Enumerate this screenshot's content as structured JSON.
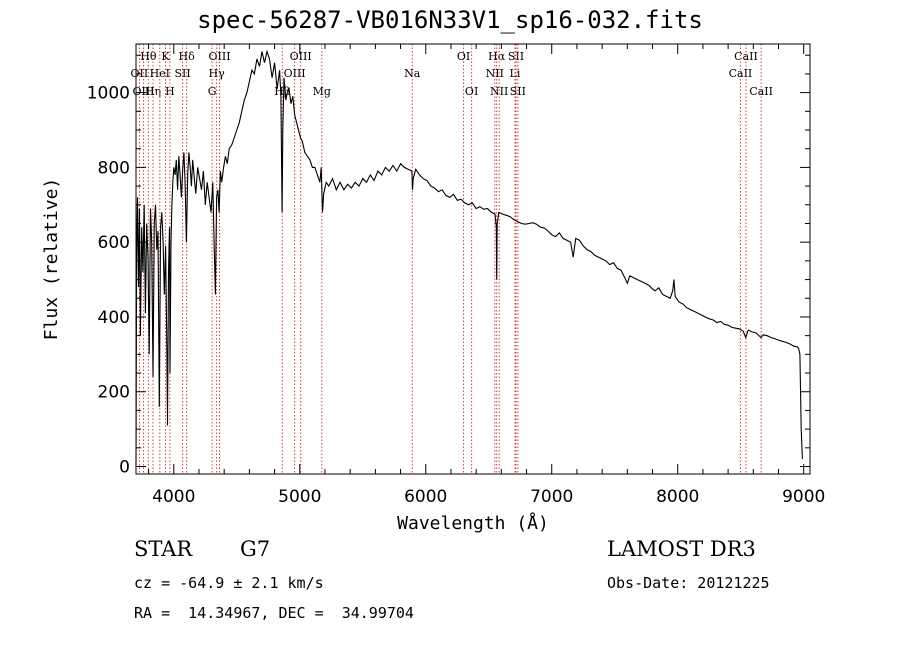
{
  "chart_data": {
    "type": "line",
    "title": "spec-56287-VB016N33V1_sp16-032.fits",
    "xlabel": "Wavelength (Å)",
    "ylabel": "Flux (relative)",
    "xlim": [
      3700,
      9050
    ],
    "ylim": [
      -20,
      1130
    ],
    "xticks": [
      4000,
      5000,
      6000,
      7000,
      8000,
      9000
    ],
    "yticks": [
      0,
      200,
      400,
      600,
      800,
      1000
    ],
    "series": [
      {
        "name": "flux",
        "points": [
          [
            3700,
            0
          ],
          [
            3705,
            560
          ],
          [
            3712,
            720
          ],
          [
            3720,
            480
          ],
          [
            3728,
            690
          ],
          [
            3735,
            350
          ],
          [
            3745,
            640
          ],
          [
            3755,
            520
          ],
          [
            3765,
            700
          ],
          [
            3775,
            410
          ],
          [
            3785,
            650
          ],
          [
            3795,
            560
          ],
          [
            3805,
            300
          ],
          [
            3815,
            690
          ],
          [
            3825,
            600
          ],
          [
            3835,
            240
          ],
          [
            3845,
            650
          ],
          [
            3855,
            700
          ],
          [
            3865,
            580
          ],
          [
            3875,
            630
          ],
          [
            3885,
            160
          ],
          [
            3895,
            640
          ],
          [
            3905,
            680
          ],
          [
            3915,
            600
          ],
          [
            3925,
            460
          ],
          [
            3935,
            590
          ],
          [
            3945,
            300
          ],
          [
            3950,
            110
          ],
          [
            3958,
            520
          ],
          [
            3966,
            640
          ],
          [
            3970,
            250
          ],
          [
            3978,
            600
          ],
          [
            3985,
            700
          ],
          [
            3992,
            760
          ],
          [
            4000,
            800
          ],
          [
            4010,
            780
          ],
          [
            4020,
            820
          ],
          [
            4030,
            740
          ],
          [
            4040,
            830
          ],
          [
            4050,
            780
          ],
          [
            4060,
            720
          ],
          [
            4070,
            790
          ],
          [
            4080,
            840
          ],
          [
            4090,
            760
          ],
          [
            4100,
            600
          ],
          [
            4110,
            780
          ],
          [
            4120,
            840
          ],
          [
            4130,
            800
          ],
          [
            4140,
            750
          ],
          [
            4150,
            820
          ],
          [
            4160,
            780
          ],
          [
            4175,
            730
          ],
          [
            4190,
            800
          ],
          [
            4205,
            770
          ],
          [
            4220,
            740
          ],
          [
            4235,
            790
          ],
          [
            4250,
            700
          ],
          [
            4265,
            760
          ],
          [
            4280,
            720
          ],
          [
            4295,
            680
          ],
          [
            4310,
            760
          ],
          [
            4320,
            600
          ],
          [
            4330,
            460
          ],
          [
            4340,
            720
          ],
          [
            4350,
            740
          ],
          [
            4360,
            680
          ],
          [
            4370,
            790
          ],
          [
            4380,
            760
          ],
          [
            4395,
            800
          ],
          [
            4410,
            830
          ],
          [
            4425,
            810
          ],
          [
            4440,
            850
          ],
          [
            4460,
            860
          ],
          [
            4480,
            880
          ],
          [
            4500,
            900
          ],
          [
            4520,
            920
          ],
          [
            4540,
            950
          ],
          [
            4560,
            980
          ],
          [
            4580,
            1000
          ],
          [
            4600,
            1030
          ],
          [
            4620,
            1060
          ],
          [
            4640,
            1050
          ],
          [
            4660,
            1090
          ],
          [
            4680,
            1070
          ],
          [
            4700,
            1110
          ],
          [
            4720,
            1080
          ],
          [
            4740,
            1110
          ],
          [
            4760,
            1090
          ],
          [
            4780,
            1040
          ],
          [
            4800,
            1080
          ],
          [
            4820,
            1010
          ],
          [
            4840,
            1060
          ],
          [
            4850,
            990
          ],
          [
            4860,
            680
          ],
          [
            4865,
            900
          ],
          [
            4875,
            1040
          ],
          [
            4890,
            980
          ],
          [
            4900,
            1000
          ],
          [
            4915,
            1010
          ],
          [
            4930,
            970
          ],
          [
            4945,
            990
          ],
          [
            4960,
            940
          ],
          [
            4975,
            920
          ],
          [
            4990,
            900
          ],
          [
            5005,
            880
          ],
          [
            5020,
            870
          ],
          [
            5040,
            840
          ],
          [
            5060,
            830
          ],
          [
            5080,
            820
          ],
          [
            5100,
            800
          ],
          [
            5120,
            800
          ],
          [
            5140,
            780
          ],
          [
            5160,
            760
          ],
          [
            5170,
            800
          ],
          [
            5180,
            680
          ],
          [
            5190,
            730
          ],
          [
            5210,
            760
          ],
          [
            5230,
            750
          ],
          [
            5260,
            770
          ],
          [
            5290,
            740
          ],
          [
            5320,
            760
          ],
          [
            5350,
            740
          ],
          [
            5380,
            755
          ],
          [
            5410,
            745
          ],
          [
            5440,
            760
          ],
          [
            5470,
            750
          ],
          [
            5500,
            770
          ],
          [
            5530,
            760
          ],
          [
            5560,
            780
          ],
          [
            5590,
            765
          ],
          [
            5620,
            790
          ],
          [
            5650,
            780
          ],
          [
            5680,
            800
          ],
          [
            5710,
            790
          ],
          [
            5740,
            805
          ],
          [
            5770,
            790
          ],
          [
            5800,
            810
          ],
          [
            5830,
            800
          ],
          [
            5860,
            795
          ],
          [
            5890,
            790
          ],
          [
            5895,
            740
          ],
          [
            5900,
            770
          ],
          [
            5920,
            795
          ],
          [
            5950,
            780
          ],
          [
            5980,
            770
          ],
          [
            6010,
            765
          ],
          [
            6040,
            750
          ],
          [
            6070,
            745
          ],
          [
            6100,
            735
          ],
          [
            6130,
            740
          ],
          [
            6160,
            725
          ],
          [
            6190,
            720
          ],
          [
            6220,
            728
          ],
          [
            6250,
            712
          ],
          [
            6280,
            715
          ],
          [
            6310,
            705
          ],
          [
            6340,
            700
          ],
          [
            6370,
            705
          ],
          [
            6400,
            690
          ],
          [
            6430,
            695
          ],
          [
            6460,
            688
          ],
          [
            6490,
            690
          ],
          [
            6520,
            680
          ],
          [
            6550,
            675
          ],
          [
            6560,
            640
          ],
          [
            6563,
            500
          ],
          [
            6567,
            650
          ],
          [
            6580,
            680
          ],
          [
            6610,
            675
          ],
          [
            6640,
            672
          ],
          [
            6670,
            668
          ],
          [
            6700,
            660
          ],
          [
            6730,
            655
          ],
          [
            6760,
            650
          ],
          [
            6790,
            648
          ],
          [
            6820,
            650
          ],
          [
            6850,
            652
          ],
          [
            6880,
            648
          ],
          [
            6910,
            640
          ],
          [
            6940,
            638
          ],
          [
            6970,
            630
          ],
          [
            7000,
            620
          ],
          [
            7030,
            615
          ],
          [
            7060,
            625
          ],
          [
            7090,
            610
          ],
          [
            7120,
            605
          ],
          [
            7150,
            600
          ],
          [
            7170,
            560
          ],
          [
            7190,
            610
          ],
          [
            7220,
            605
          ],
          [
            7250,
            590
          ],
          [
            7280,
            580
          ],
          [
            7310,
            575
          ],
          [
            7340,
            565
          ],
          [
            7370,
            560
          ],
          [
            7400,
            555
          ],
          [
            7430,
            550
          ],
          [
            7460,
            540
          ],
          [
            7490,
            545
          ],
          [
            7520,
            530
          ],
          [
            7550,
            525
          ],
          [
            7580,
            505
          ],
          [
            7600,
            490
          ],
          [
            7620,
            510
          ],
          [
            7650,
            505
          ],
          [
            7680,
            500
          ],
          [
            7710,
            495
          ],
          [
            7740,
            490
          ],
          [
            7770,
            485
          ],
          [
            7800,
            475
          ],
          [
            7820,
            470
          ],
          [
            7850,
            478
          ],
          [
            7880,
            460
          ],
          [
            7910,
            455
          ],
          [
            7940,
            450
          ],
          [
            7960,
            470
          ],
          [
            7970,
            500
          ],
          [
            7980,
            455
          ],
          [
            8010,
            440
          ],
          [
            8040,
            435
          ],
          [
            8070,
            425
          ],
          [
            8100,
            420
          ],
          [
            8130,
            415
          ],
          [
            8160,
            410
          ],
          [
            8190,
            405
          ],
          [
            8220,
            400
          ],
          [
            8250,
            395
          ],
          [
            8280,
            392
          ],
          [
            8310,
            385
          ],
          [
            8340,
            388
          ],
          [
            8370,
            380
          ],
          [
            8400,
            378
          ],
          [
            8430,
            372
          ],
          [
            8460,
            370
          ],
          [
            8490,
            368
          ],
          [
            8520,
            362
          ],
          [
            8540,
            345
          ],
          [
            8560,
            365
          ],
          [
            8590,
            360
          ],
          [
            8620,
            358
          ],
          [
            8660,
            345
          ],
          [
            8680,
            352
          ],
          [
            8710,
            350
          ],
          [
            8740,
            345
          ],
          [
            8770,
            342
          ],
          [
            8800,
            338
          ],
          [
            8830,
            335
          ],
          [
            8860,
            332
          ],
          [
            8890,
            328
          ],
          [
            8920,
            322
          ],
          [
            8950,
            320
          ],
          [
            8960,
            315
          ],
          [
            8970,
            300
          ],
          [
            8980,
            100
          ],
          [
            8990,
            20
          ]
        ]
      }
    ],
    "spectral_lines": [
      {
        "name": "Hθ",
        "wave": 3798,
        "row": 0
      },
      {
        "name": "OII",
        "wave": 3727,
        "row": 1
      },
      {
        "name": "OIII",
        "wave": 3760,
        "row": 2
      },
      {
        "name": "Hη",
        "wave": 3835,
        "row": 2
      },
      {
        "name": "HeI",
        "wave": 3889,
        "row": 1
      },
      {
        "name": "K",
        "wave": 3934,
        "row": 0
      },
      {
        "name": "SII",
        "wave": 4070,
        "row": 1
      },
      {
        "name": "H",
        "wave": 3969,
        "row": 2
      },
      {
        "name": "Hδ",
        "wave": 4102,
        "row": 0
      },
      {
        "name": "OIII",
        "wave": 4363,
        "row": 0
      },
      {
        "name": "Hγ",
        "wave": 4340,
        "row": 1
      },
      {
        "name": "G",
        "wave": 4304,
        "row": 2
      },
      {
        "name": "Hβ",
        "wave": 4861,
        "row": 2
      },
      {
        "name": "OIII",
        "wave": 4959,
        "row": 1
      },
      {
        "name": "OIII",
        "wave": 5007,
        "row": 0
      },
      {
        "name": "Mg",
        "wave": 5175,
        "row": 2
      },
      {
        "name": "Na",
        "wave": 5893,
        "row": 1
      },
      {
        "name": "OI",
        "wave": 6300,
        "row": 0
      },
      {
        "name": "OI",
        "wave": 6364,
        "row": 2
      },
      {
        "name": "Hα",
        "wave": 6563,
        "row": 0
      },
      {
        "name": "NII",
        "wave": 6548,
        "row": 1
      },
      {
        "name": "NII",
        "wave": 6583,
        "row": 2
      },
      {
        "name": "SII",
        "wave": 6716,
        "row": 0
      },
      {
        "name": "Li",
        "wave": 6708,
        "row": 1
      },
      {
        "name": "SII",
        "wave": 6731,
        "row": 2
      },
      {
        "name": "CaII",
        "wave": 8542,
        "row": 0
      },
      {
        "name": "CaII",
        "wave": 8498,
        "row": 1
      },
      {
        "name": "CaII",
        "wave": 8662,
        "row": 2
      }
    ]
  },
  "info": {
    "class": "STAR",
    "subclass": "G7",
    "survey": "LAMOST DR3",
    "redshift": "cz = -64.9 ± 2.1 km/s",
    "obs_date": "Obs-Date: 20121225",
    "coords": "RA =  14.34967, DEC =  34.99704"
  },
  "colors": {
    "line_markers": "#d04040",
    "spectrum": "#000000"
  }
}
